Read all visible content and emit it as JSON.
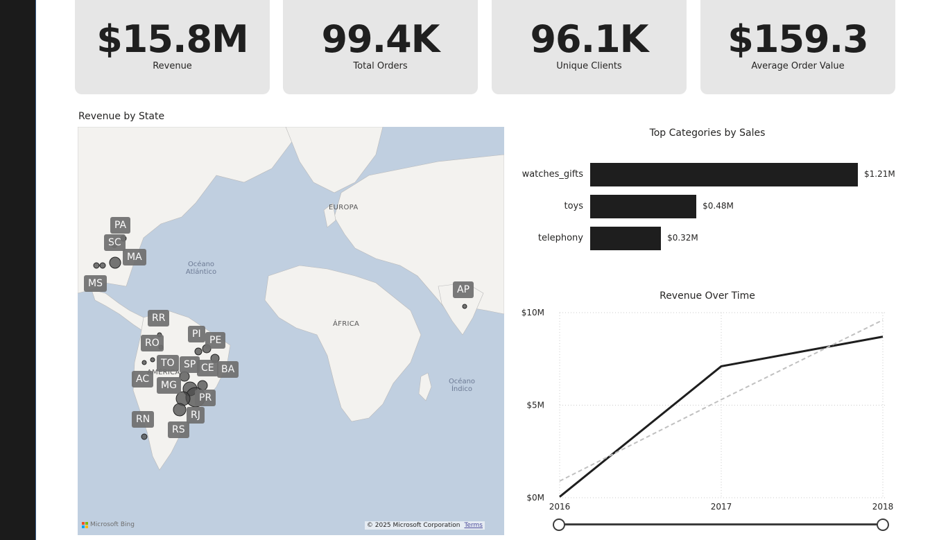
{
  "kpis": [
    {
      "value": "$15.8M",
      "label": "Revenue"
    },
    {
      "value": "99.4K",
      "label": "Total Orders"
    },
    {
      "value": "96.1K",
      "label": "Unique Clients"
    },
    {
      "value": "$159.3",
      "label": "Average Order Value"
    }
  ],
  "map": {
    "title": "Revenue by State",
    "ocean_atlantic": "Océano Atlántico",
    "ocean_indian": "Océano Índico",
    "europe": "EUROPA",
    "africa": "ÁFRICA",
    "america": "AMÉRICA",
    "bing_logo": "Microsoft Bing",
    "copyright": "© 2025 Microsoft Corporation",
    "terms": "Terms",
    "state_tags": [
      "PA",
      "SC",
      "MA",
      "MS",
      "AP",
      "RR",
      "PI",
      "PE",
      "RO",
      "TO",
      "SP",
      "CE",
      "BA",
      "AC",
      "MG",
      "PR",
      "RN",
      "RJ",
      "RS"
    ]
  },
  "bar_chart": {
    "title": "Top Categories by Sales",
    "chart_data": {
      "type": "bar",
      "orientation": "horizontal",
      "categories": [
        "watches_gifts",
        "toys",
        "telephony"
      ],
      "values": [
        1.21,
        0.48,
        0.32
      ],
      "value_labels": [
        "$1.21M",
        "$0.48M",
        "$0.32M"
      ]
    }
  },
  "line_chart": {
    "title": "Revenue Over Time",
    "chart_data": {
      "type": "line",
      "x": [
        "2016",
        "2017",
        "2018"
      ],
      "series": [
        {
          "values": [
            0.05,
            7.1,
            8.7
          ],
          "style": "solid"
        },
        {
          "values": [
            0.9,
            5.3,
            9.6
          ],
          "style": "dashed-trend"
        }
      ],
      "ylim": [
        0,
        10
      ],
      "yticks": [
        "$0M",
        "$5M",
        "$10M"
      ],
      "grid": true
    }
  },
  "slider": {
    "range": [
      "2016",
      "2018"
    ]
  },
  "colors": {
    "bar": "#1e1e1e",
    "line": "#1e1e1e",
    "trend": "#c0c0c0",
    "kpi_bg": "#e6e6e6",
    "map_water": "#c0cfe0",
    "map_land": "#f3f2ef"
  }
}
